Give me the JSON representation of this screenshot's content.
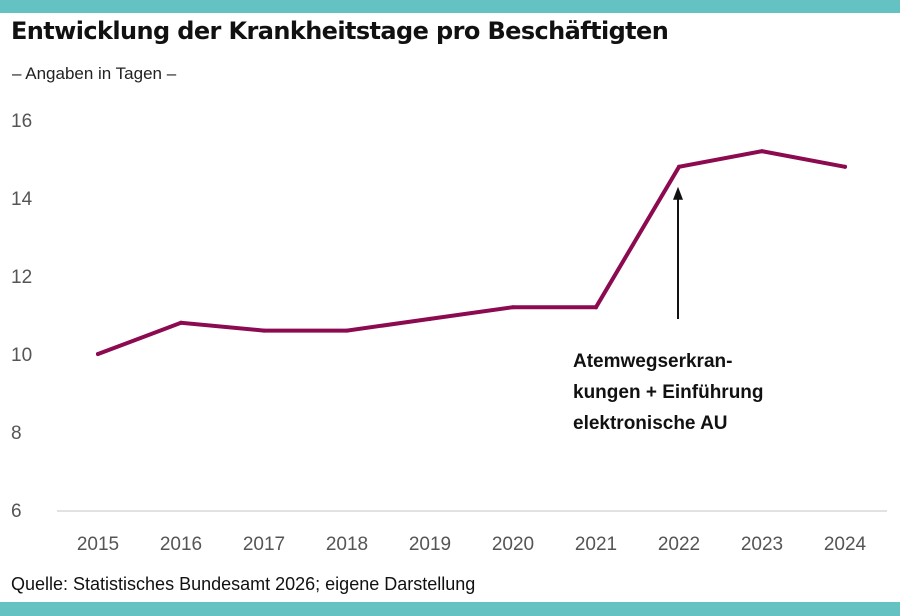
{
  "header": {
    "title": "Entwicklung der Krankheitstage pro Beschäftigten",
    "subtitle": "– Angaben in Tagen  –"
  },
  "footer": {
    "source": "Quelle: Statistisches Bundesamt 2026; eigene Darstellung"
  },
  "colors": {
    "accent_bar": "#65c2c2",
    "line": "#8b0a50",
    "annotation": "#111111",
    "axis": "#d9d9d9"
  },
  "chart_data": {
    "type": "line",
    "title": "Entwicklung der Krankheitstage pro Beschäftigten",
    "subtitle": "– Angaben in Tagen  –",
    "xlabel": "",
    "ylabel": "",
    "x": [
      "2015",
      "2016",
      "2017",
      "2018",
      "2019",
      "2020",
      "2021",
      "2022",
      "2023",
      "2024"
    ],
    "series": [
      {
        "name": "Krankheitstage pro Beschäftigten",
        "values": [
          10.0,
          10.8,
          10.6,
          10.6,
          10.9,
          11.2,
          11.2,
          14.8,
          15.2,
          14.8
        ]
      }
    ],
    "ylim": [
      6,
      16
    ],
    "yticks": [
      "6",
      "8",
      "10",
      "12",
      "14",
      "16"
    ],
    "grid": false,
    "legend": "none",
    "annotations": [
      {
        "target_x": "2022",
        "lines": [
          "Atemwegserkran-",
          "kungen + Einführung",
          "elektronische AU"
        ],
        "arrow": true
      }
    ]
  }
}
